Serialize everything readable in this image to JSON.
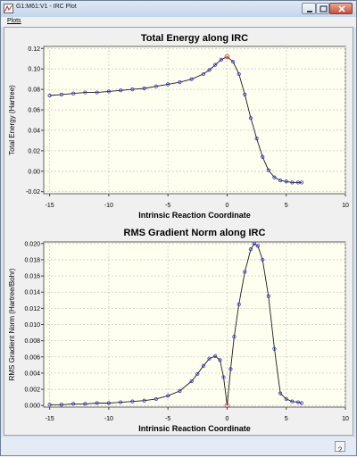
{
  "window": {
    "title": "G1:M61:V1 - IRC Plot"
  },
  "menu": [
    "Plots"
  ],
  "colors": {
    "plot_background": "#fffff0",
    "plot_line": "#1a1a1a",
    "marker": "#3333cc",
    "highlight_marker": "#e02020"
  },
  "chart_data": [
    {
      "type": "line",
      "title": "Total Energy along IRC",
      "xlabel": "Intrinsic Reaction Coordinate",
      "ylabel": "Total Energy (Hartree)",
      "xlim": [
        -15.5,
        10
      ],
      "ylim": [
        -0.022,
        0.122
      ],
      "xticks": [
        "-15",
        "-10",
        "-5",
        "0",
        "5",
        "10"
      ],
      "xtick_values": [
        -15,
        -10,
        -5,
        0,
        5,
        10
      ],
      "yticks": [
        "-0.02",
        "0.00",
        "0.02",
        "0.04",
        "0.06",
        "0.08",
        "0.10",
        "0.12"
      ],
      "ytick_values": [
        -0.02,
        0.0,
        0.02,
        0.04,
        0.06,
        0.08,
        0.1,
        0.12
      ],
      "grid": true,
      "highlight_x": 0,
      "series": [
        {
          "x": [
            -15.0,
            -14.0,
            -13.0,
            -12.0,
            -11.0,
            -10.0,
            -9.0,
            -8.0,
            -7.0,
            -6.0,
            -5.0,
            -4.0,
            -3.0,
            -2.0,
            -1.5,
            -1.0,
            -0.5,
            0.0,
            0.5,
            1.0,
            1.5,
            2.0,
            2.5,
            3.0,
            3.5,
            4.0,
            4.5,
            5.0,
            5.5,
            6.0,
            6.3
          ],
          "y": [
            0.074,
            0.075,
            0.076,
            0.077,
            0.077,
            0.078,
            0.079,
            0.08,
            0.081,
            0.083,
            0.085,
            0.087,
            0.09,
            0.095,
            0.099,
            0.104,
            0.109,
            0.112,
            0.107,
            0.095,
            0.075,
            0.052,
            0.032,
            0.014,
            0.001,
            -0.006,
            -0.009,
            -0.01,
            -0.011,
            -0.011,
            -0.011
          ]
        }
      ]
    },
    {
      "type": "line",
      "title": "RMS Gradient Norm along IRC",
      "xlabel": "Intrinsic Reaction Coordinate",
      "ylabel": "RMS Gradient Norm (Hartree/Bohr)",
      "xlim": [
        -15.5,
        10
      ],
      "ylim": [
        -0.0002,
        0.0202
      ],
      "xticks": [
        "-15",
        "-10",
        "-5",
        "0",
        "5",
        "10"
      ],
      "xtick_values": [
        -15,
        -10,
        -5,
        0,
        5,
        10
      ],
      "yticks": [
        "0.000",
        "0.002",
        "0.004",
        "0.006",
        "0.008",
        "0.010",
        "0.012",
        "0.014",
        "0.016",
        "0.018",
        "0.020"
      ],
      "ytick_values": [
        0.0,
        0.002,
        0.004,
        0.006,
        0.008,
        0.01,
        0.012,
        0.014,
        0.016,
        0.018,
        0.02
      ],
      "grid": true,
      "highlight_x": 0,
      "series": [
        {
          "x": [
            -15.0,
            -14.0,
            -13.0,
            -12.0,
            -11.0,
            -10.0,
            -9.0,
            -8.0,
            -7.0,
            -6.0,
            -5.0,
            -4.0,
            -3.0,
            -2.5,
            -2.0,
            -1.5,
            -1.0,
            -0.6,
            -0.3,
            0.0,
            0.3,
            0.6,
            1.0,
            1.5,
            2.0,
            2.3,
            2.6,
            3.0,
            3.5,
            4.0,
            4.5,
            5.0,
            5.5,
            6.0,
            6.3
          ],
          "y": [
            0.0001,
            0.0001,
            0.0002,
            0.0002,
            0.0003,
            0.0003,
            0.0004,
            0.0005,
            0.0006,
            0.0008,
            0.0012,
            0.0018,
            0.003,
            0.0039,
            0.0049,
            0.0058,
            0.0061,
            0.0056,
            0.0035,
            0.0,
            0.0045,
            0.0085,
            0.0125,
            0.0165,
            0.0193,
            0.02,
            0.0197,
            0.018,
            0.0135,
            0.007,
            0.0015,
            0.0008,
            0.0005,
            0.0004,
            0.0003
          ]
        }
      ]
    }
  ]
}
